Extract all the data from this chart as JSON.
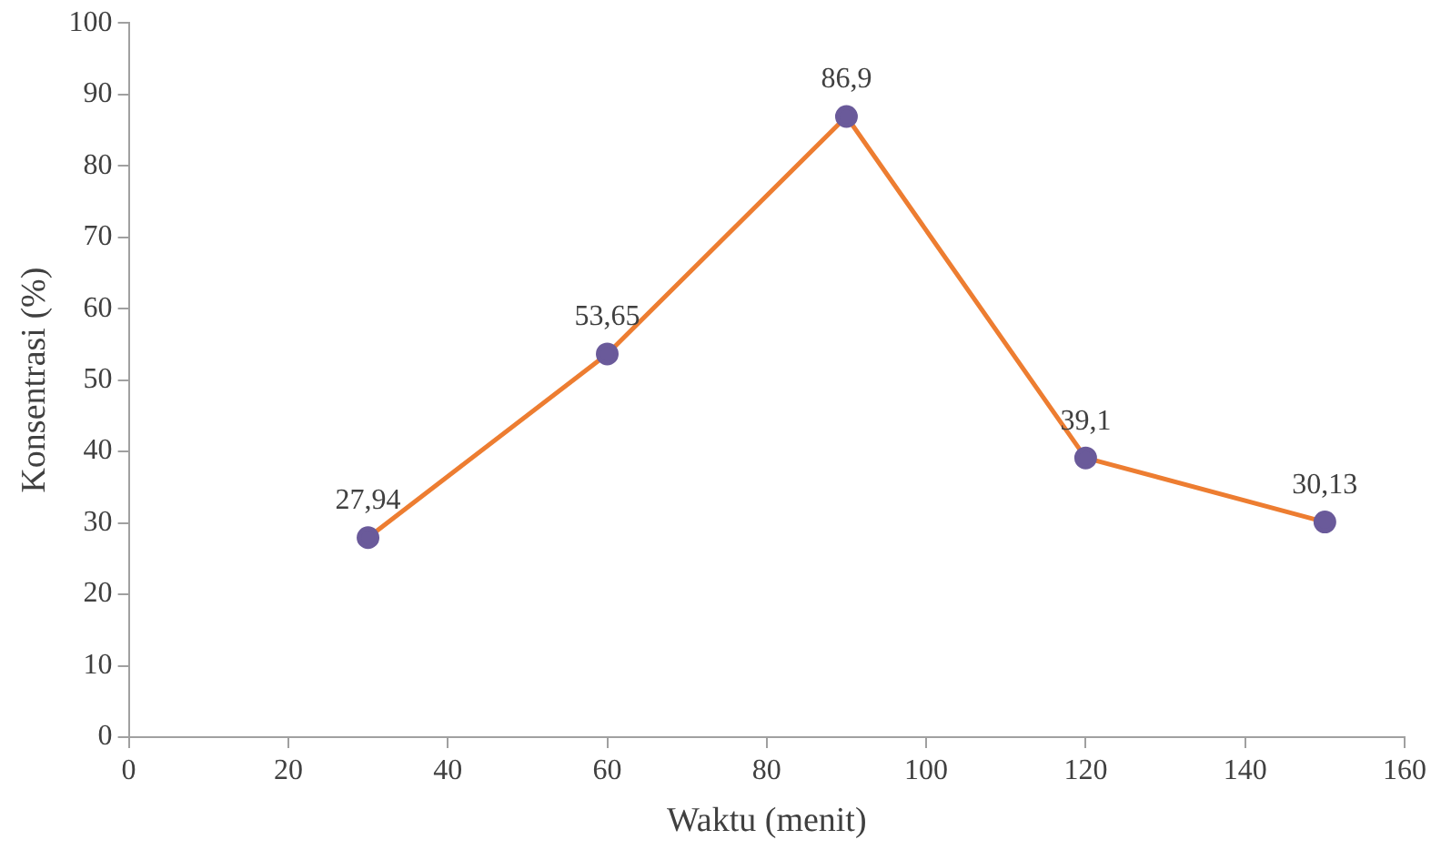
{
  "chart_data": {
    "type": "line",
    "xlabel": "Waktu (menit)",
    "ylabel": "Konsentrasi (%)",
    "x": [
      30,
      60,
      90,
      120,
      150
    ],
    "series": [
      {
        "color": "#ed7d31",
        "colors": [
          "#6a5a9a",
          "#6a5a9a",
          "#6a5a9a",
          "#6a5a9a",
          "#6a5a9a"
        ],
        "values": [
          27.94,
          53.65,
          86.9,
          39.1,
          30.13
        ],
        "value_labels": [
          "27,94",
          "53,65",
          "86,9",
          "39,1",
          "30,13"
        ]
      }
    ],
    "xlim": [
      0,
      160
    ],
    "xticks": [
      0,
      20,
      40,
      60,
      80,
      100,
      120,
      140,
      160
    ],
    "ylim": [
      0,
      100
    ],
    "yticks": [
      0,
      10,
      20,
      30,
      40,
      50,
      60,
      70,
      80,
      90,
      100
    ],
    "grid": false,
    "legend": false,
    "marker": "circle",
    "line_style": "solid"
  }
}
